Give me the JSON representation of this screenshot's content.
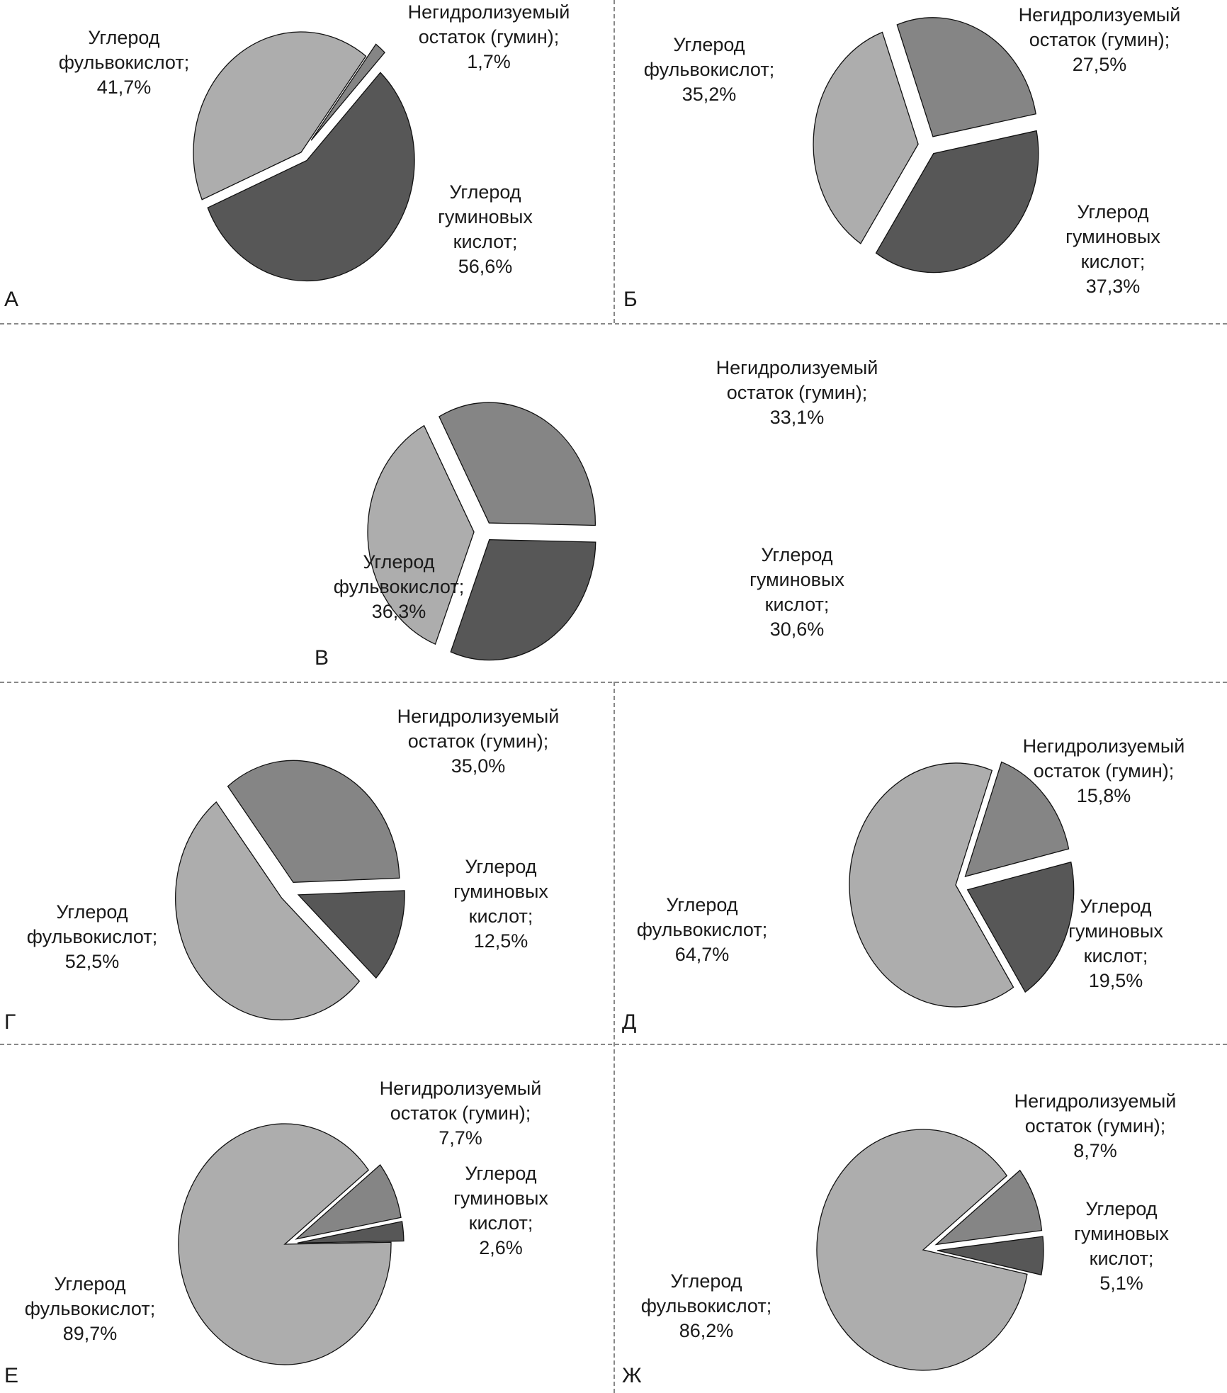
{
  "chart_data": [
    {
      "type": "pie",
      "panel_label": "А",
      "slices": [
        {
          "name": "fulvic",
          "label_lines": [
            "Углерод",
            "фульвокислот;",
            "41,7%"
          ],
          "value": 41.7,
          "color": "#adadad"
        },
        {
          "name": "humin",
          "label_lines": [
            "Негидролизуемый",
            "остаток (гумин);",
            "1,7%"
          ],
          "value": 1.7,
          "color": "#858585"
        },
        {
          "name": "humic",
          "label_lines": [
            "Углерод",
            "гуминовых",
            "кислот;",
            "56,6%"
          ],
          "value": 56.6,
          "color": "#575757"
        }
      ]
    },
    {
      "type": "pie",
      "panel_label": "Б",
      "slices": [
        {
          "name": "fulvic",
          "label_lines": [
            "Углерод",
            "фульвокислот;",
            "35,2%"
          ],
          "value": 35.2,
          "color": "#adadad"
        },
        {
          "name": "humin",
          "label_lines": [
            "Негидролизуемый",
            "остаток (гумин);",
            "27,5%"
          ],
          "value": 27.5,
          "color": "#858585"
        },
        {
          "name": "humic",
          "label_lines": [
            "Углерод",
            "гуминовых",
            "кислот;",
            "37,3%"
          ],
          "value": 37.3,
          "color": "#575757"
        }
      ]
    },
    {
      "type": "pie",
      "panel_label": "В",
      "slices": [
        {
          "name": "fulvic",
          "label_lines": [
            "Углерод",
            "фульвокислот;",
            "36,3%"
          ],
          "value": 36.3,
          "color": "#adadad"
        },
        {
          "name": "humin",
          "label_lines": [
            "Негидролизуемый",
            "остаток (гумин);",
            "33,1%"
          ],
          "value": 33.1,
          "color": "#858585"
        },
        {
          "name": "humic",
          "label_lines": [
            "Углерод",
            "гуминовых",
            "кислот;",
            "30,6%"
          ],
          "value": 30.6,
          "color": "#575757"
        }
      ]
    },
    {
      "type": "pie",
      "panel_label": "Г",
      "slices": [
        {
          "name": "fulvic",
          "label_lines": [
            "Углерод",
            "фульвокислот;",
            "52,5%"
          ],
          "value": 52.5,
          "color": "#adadad"
        },
        {
          "name": "humin",
          "label_lines": [
            "Негидролизуемый",
            "остаток (гумин);",
            "35,0%"
          ],
          "value": 35.0,
          "color": "#858585"
        },
        {
          "name": "humic",
          "label_lines": [
            "Углерод",
            "гуминовых",
            "кислот;",
            "12,5%"
          ],
          "value": 12.5,
          "color": "#575757"
        }
      ]
    },
    {
      "type": "pie",
      "panel_label": "Д",
      "slices": [
        {
          "name": "fulvic",
          "label_lines": [
            "Углерод",
            "фульвокислот;",
            "64,7%"
          ],
          "value": 64.7,
          "color": "#adadad"
        },
        {
          "name": "humin",
          "label_lines": [
            "Негидролизуемый",
            "остаток (гумин);",
            "15,8%"
          ],
          "value": 15.8,
          "color": "#858585"
        },
        {
          "name": "humic",
          "label_lines": [
            "Углерод",
            "гуминовых",
            "кислот;",
            "19,5%"
          ],
          "value": 19.5,
          "color": "#575757"
        }
      ]
    },
    {
      "type": "pie",
      "panel_label": "Е",
      "slices": [
        {
          "name": "fulvic",
          "label_lines": [
            "Углерод",
            "фульвокислот;",
            "89,7%"
          ],
          "value": 89.7,
          "color": "#adadad"
        },
        {
          "name": "humin",
          "label_lines": [
            "Негидролизуемый",
            "остаток (гумин);",
            "7,7%"
          ],
          "value": 7.7,
          "color": "#858585"
        },
        {
          "name": "humic",
          "label_lines": [
            "Углерод",
            "гуминовых",
            "кислот;",
            "2,6%"
          ],
          "value": 2.6,
          "color": "#575757"
        }
      ]
    },
    {
      "type": "pie",
      "panel_label": "Ж",
      "slices": [
        {
          "name": "fulvic",
          "label_lines": [
            "Углерод",
            "фульвокислот;",
            "86,2%"
          ],
          "value": 86.2,
          "color": "#adadad"
        },
        {
          "name": "humin",
          "label_lines": [
            "Негидролизуемый",
            "остаток (гумин);",
            "8,7%"
          ],
          "value": 8.7,
          "color": "#858585"
        },
        {
          "name": "humic",
          "label_lines": [
            "Углерод",
            "гуминовых",
            "кислот;",
            "5,1%"
          ],
          "value": 5.1,
          "color": "#575757"
        }
      ]
    }
  ]
}
